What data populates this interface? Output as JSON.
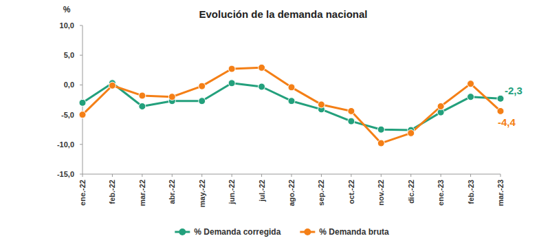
{
  "chart_data": {
    "type": "line",
    "title": "Evolución de la demanda nacional",
    "y_label": "%",
    "categories": [
      "ene.-22",
      "feb.-22",
      "mar.-22",
      "abr.-22",
      "may.-22",
      "jun.-22",
      "jul.-22",
      "ago.-22",
      "sep.-22",
      "oct.-22",
      "nov.-22",
      "dic.-22",
      "ene.-23",
      "feb.-23",
      "mar.-23"
    ],
    "series": [
      {
        "name": "% Demanda corregida",
        "color": "#23a07c",
        "marker": "circle",
        "values": [
          -3.0,
          0.3,
          -3.6,
          -2.7,
          -2.7,
          0.3,
          -0.3,
          -2.7,
          -4.1,
          -6.1,
          -7.5,
          -7.6,
          -4.6,
          -2.0,
          -2.3
        ]
      },
      {
        "name": "% Demanda bruta",
        "color": "#f47f16",
        "marker": "circle",
        "values": [
          -5.0,
          -0.1,
          -1.8,
          -2.0,
          -0.2,
          2.7,
          2.9,
          -0.4,
          -3.3,
          -4.4,
          -9.8,
          -8.1,
          -3.6,
          0.2,
          -4.4
        ]
      }
    ],
    "ylim": [
      -15,
      10
    ],
    "yticks": [
      {
        "value": -15,
        "label": "-15,0"
      },
      {
        "value": -10,
        "label": "-10,0"
      },
      {
        "value": -5,
        "label": "-5,0"
      },
      {
        "value": 0,
        "label": "0,0"
      },
      {
        "value": 5,
        "label": "5,0"
      },
      {
        "value": 10,
        "label": "10,0"
      }
    ],
    "grid": false,
    "legend": "bottom",
    "annotations": [
      {
        "text": "-2,3",
        "category": "mar.-23",
        "value": -2.3,
        "color": "#23a07c"
      },
      {
        "text": "-4,4",
        "category": "mar.-23",
        "value": -4.4,
        "color": "#f47f16"
      }
    ]
  }
}
